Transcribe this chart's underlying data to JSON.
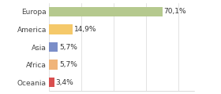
{
  "categories": [
    "Europa",
    "America",
    "Asia",
    "Africa",
    "Oceania"
  ],
  "values": [
    70.1,
    14.9,
    5.7,
    5.7,
    3.4
  ],
  "labels": [
    "70,1%",
    "14,9%",
    "5,7%",
    "5,7%",
    "3,4%"
  ],
  "bar_colors": [
    "#b5c98e",
    "#f5c96a",
    "#7b8ec8",
    "#f0b47a",
    "#d94f4f"
  ],
  "background_color": "#ffffff",
  "label_fontsize": 6.5,
  "tick_fontsize": 6.5,
  "bar_height": 0.55,
  "xlim": [
    0,
    90
  ],
  "grid_color": "#d8d8d8",
  "grid_linewidth": 0.5,
  "spine_color": "#cccccc"
}
